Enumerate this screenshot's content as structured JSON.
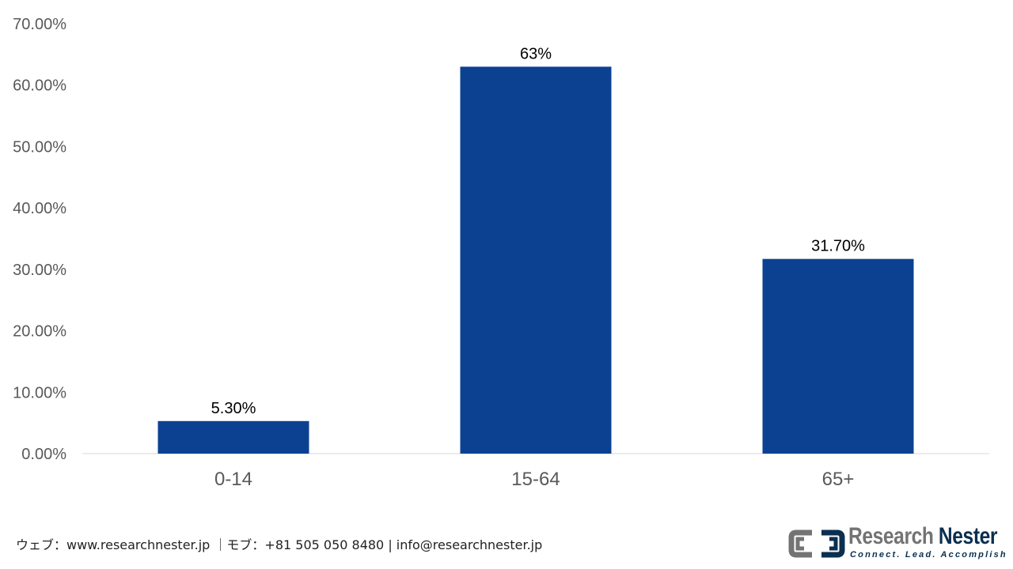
{
  "chart_data": {
    "type": "bar",
    "categories": [
      "0-14",
      "15-64",
      "65+"
    ],
    "values": [
      5.3,
      63,
      31.7
    ],
    "data_labels": [
      "5.30%",
      "63%",
      "31.70%"
    ],
    "title": "",
    "xlabel": "",
    "ylabel": "",
    "ylim": [
      0,
      70
    ],
    "y_ticks": [
      "0.00%",
      "10.00%",
      "20.00%",
      "30.00%",
      "40.00%",
      "50.00%",
      "60.00%",
      "70.00%"
    ],
    "grid": false,
    "legend": "none",
    "bar_color": "#0c4191"
  },
  "footer": {
    "contact": "ウェブ：www.researchnester.jp ｜モブ：+81 505 050 8480 | info@researchnester.jp"
  },
  "logo": {
    "name_part1": "Research ",
    "name_part2": "Nester",
    "tagline": "Connect. Lead. Accomplish",
    "icon": "research-nester-logo-icon",
    "gray": "#737373",
    "navy": "#0b2f4f"
  }
}
